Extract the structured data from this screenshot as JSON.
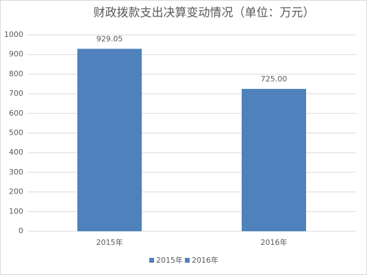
{
  "chart_data": {
    "type": "bar",
    "title": "财政拨款支出决算变动情况（单位：万元）",
    "categories": [
      "2015年",
      "2016年"
    ],
    "values": [
      929.05,
      725.0
    ],
    "value_labels": [
      "929.05",
      "725.00"
    ],
    "color": "#4f81bd",
    "ylim": [
      0,
      1000
    ],
    "yticks": [
      0,
      100,
      200,
      300,
      400,
      500,
      600,
      700,
      800,
      900,
      1000
    ],
    "grid": true,
    "legend": "bottom"
  }
}
